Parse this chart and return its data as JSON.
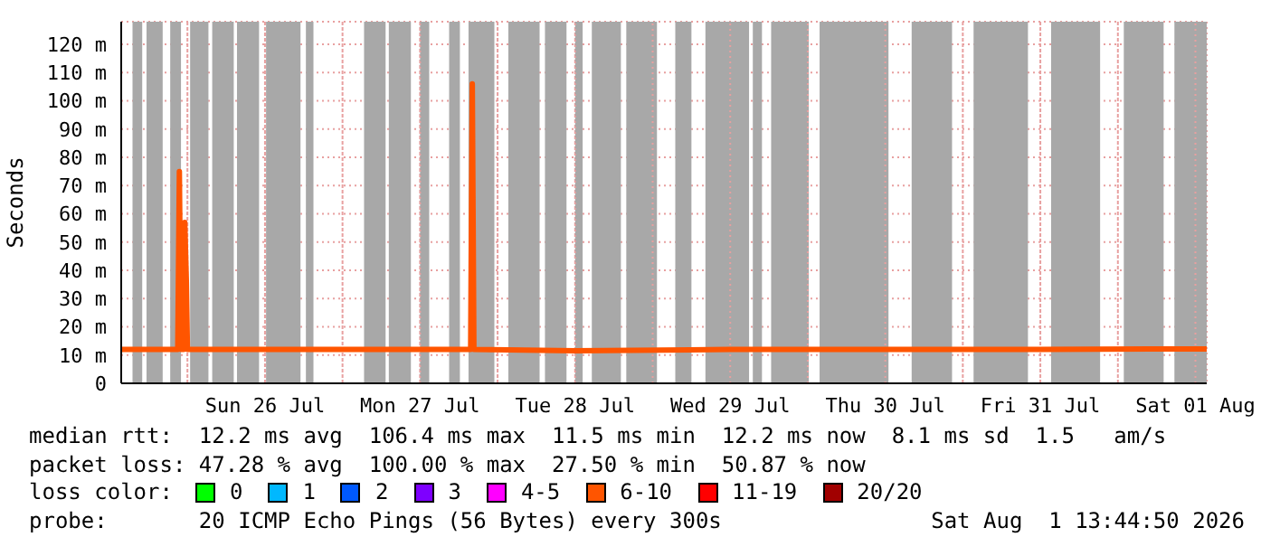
{
  "chart_data": {
    "type": "line",
    "ylabel": "Seconds",
    "legend_title": "loss color:",
    "legend": "bottom",
    "grid": true,
    "marker": "none",
    "line_style": "solid",
    "xlim": [
      "2026-07-25T13:45",
      "2026-08-01T13:45"
    ],
    "xticks": [
      {
        "value": "2026-07-26T00:00",
        "label": null
      },
      {
        "value": "2026-07-26T12:00",
        "label": "Sun 26 Jul"
      },
      {
        "value": "2026-07-27T00:00",
        "label": null
      },
      {
        "value": "2026-07-27T12:00",
        "label": "Mon 27 Jul"
      },
      {
        "value": "2026-07-28T00:00",
        "label": null
      },
      {
        "value": "2026-07-28T12:00",
        "label": "Tue 28 Jul"
      },
      {
        "value": "2026-07-29T00:00",
        "label": null
      },
      {
        "value": "2026-07-29T12:00",
        "label": "Wed 29 Jul"
      },
      {
        "value": "2026-07-30T00:00",
        "label": null
      },
      {
        "value": "2026-07-30T12:00",
        "label": "Thu 30 Jul"
      },
      {
        "value": "2026-07-31T00:00",
        "label": null
      },
      {
        "value": "2026-07-31T12:00",
        "label": "Fri 31 Jul"
      },
      {
        "value": "2026-08-01T00:00",
        "label": null
      },
      {
        "value": "2026-08-01T12:00",
        "label": "Sat 01 Aug"
      }
    ],
    "ylim": [
      0,
      128
    ],
    "yticks": [
      0,
      {
        "value": 10,
        "label": "10 m"
      },
      {
        "value": 20,
        "label": "20 m"
      },
      {
        "value": 30,
        "label": "30 m"
      },
      {
        "value": 40,
        "label": "40 m"
      },
      {
        "value": 50,
        "label": "50 m"
      },
      {
        "value": 60,
        "label": "60 m"
      },
      {
        "value": 70,
        "label": "70 m"
      },
      {
        "value": 80,
        "label": "80 m"
      },
      {
        "value": 90,
        "label": "90 m"
      },
      {
        "value": 100,
        "label": "100 m"
      },
      {
        "value": 110,
        "label": "110 m"
      },
      {
        "value": 120,
        "label": "120 m"
      }
    ],
    "x": [
      "2026-07-25T13:45",
      "2026-07-25T22:30",
      "2026-07-25T22:45",
      "2026-07-25T23:00",
      "2026-07-25T23:25",
      "2026-07-25T23:35",
      "2026-07-25T23:50",
      "2026-07-26T00:00",
      "2026-07-27T19:50",
      "2026-07-27T20:05",
      "2026-07-27T20:20",
      "2026-07-28T12:00",
      "2026-07-29T12:00",
      "2026-07-30T12:00",
      "2026-07-31T12:00",
      "2026-08-01T13:45"
    ],
    "series": [
      {
        "name": "0",
        "color": "#00ff00",
        "values": [
          null,
          null,
          null,
          null,
          null,
          null,
          null,
          null,
          null,
          null,
          null,
          null,
          null,
          null,
          null,
          null
        ]
      },
      {
        "name": "1",
        "color": "#00b8ff",
        "values": [
          null,
          null,
          null,
          null,
          null,
          null,
          null,
          null,
          null,
          null,
          null,
          null,
          null,
          null,
          null,
          null
        ]
      },
      {
        "name": "2",
        "color": "#0059ff",
        "values": [
          null,
          null,
          null,
          null,
          null,
          null,
          null,
          null,
          null,
          null,
          null,
          null,
          null,
          null,
          null,
          null
        ]
      },
      {
        "name": "3",
        "color": "#7e00ff",
        "values": [
          null,
          null,
          null,
          null,
          null,
          null,
          null,
          null,
          null,
          null,
          null,
          null,
          null,
          null,
          null,
          null
        ]
      },
      {
        "name": "4-5",
        "color": "#ff00ff",
        "values": [
          null,
          null,
          null,
          null,
          null,
          null,
          null,
          null,
          null,
          null,
          null,
          null,
          null,
          null,
          null,
          null
        ]
      },
      {
        "name": "6-10",
        "color": "#ff5500",
        "values": [
          12,
          12,
          75,
          12,
          12,
          57,
          36,
          12,
          12,
          106,
          12,
          11.5,
          12,
          12,
          12,
          12.2
        ]
      },
      {
        "name": "11-19",
        "color": "#ff0000",
        "values": [
          null,
          null,
          null,
          null,
          null,
          null,
          null,
          null,
          null,
          null,
          null,
          null,
          null,
          null,
          null,
          null
        ]
      },
      {
        "name": "20/20",
        "color": "#a10000",
        "values": [
          null,
          null,
          null,
          null,
          null,
          null,
          null,
          null,
          null,
          null,
          null,
          null,
          null,
          null,
          null,
          null
        ]
      }
    ],
    "bands": [
      {
        "axis": "x",
        "from": "2026-07-25T15:30",
        "to": "2026-07-25T17:00",
        "color": "#a8a8a8"
      },
      {
        "axis": "x",
        "from": "2026-07-25T17:40",
        "to": "2026-07-25T20:10",
        "color": "#a8a8a8"
      },
      {
        "axis": "x",
        "from": "2026-07-25T21:20",
        "to": "2026-07-25T23:00",
        "color": "#a8a8a8"
      },
      {
        "axis": "x",
        "from": "2026-07-26T00:25",
        "to": "2026-07-26T03:15",
        "color": "#a8a8a8"
      },
      {
        "axis": "x",
        "from": "2026-07-26T03:50",
        "to": "2026-07-26T07:10",
        "color": "#a8a8a8"
      },
      {
        "axis": "x",
        "from": "2026-07-26T07:40",
        "to": "2026-07-26T11:05",
        "color": "#a8a8a8"
      },
      {
        "axis": "x",
        "from": "2026-07-26T12:10",
        "to": "2026-07-26T17:30",
        "color": "#a8a8a8"
      },
      {
        "axis": "x",
        "from": "2026-07-26T18:20",
        "to": "2026-07-26T19:30",
        "color": "#a8a8a8"
      },
      {
        "axis": "x",
        "from": "2026-07-27T03:20",
        "to": "2026-07-27T06:40",
        "color": "#a8a8a8"
      },
      {
        "axis": "x",
        "from": "2026-07-27T07:10",
        "to": "2026-07-27T10:35",
        "color": "#a8a8a8"
      },
      {
        "axis": "x",
        "from": "2026-07-27T12:00",
        "to": "2026-07-27T13:25",
        "color": "#a8a8a8"
      },
      {
        "axis": "x",
        "from": "2026-07-27T16:30",
        "to": "2026-07-27T18:10",
        "color": "#a8a8a8"
      },
      {
        "axis": "x",
        "from": "2026-07-27T19:30",
        "to": "2026-07-27T23:30",
        "color": "#a8a8a8"
      },
      {
        "axis": "x",
        "from": "2026-07-28T01:40",
        "to": "2026-07-28T06:30",
        "color": "#a8a8a8"
      },
      {
        "axis": "x",
        "from": "2026-07-28T07:20",
        "to": "2026-07-28T10:40",
        "color": "#a8a8a8"
      },
      {
        "axis": "x",
        "from": "2026-07-28T12:00",
        "to": "2026-07-28T13:10",
        "color": "#a8a8a8"
      },
      {
        "axis": "x",
        "from": "2026-07-28T14:35",
        "to": "2026-07-28T19:05",
        "color": "#a8a8a8"
      },
      {
        "axis": "x",
        "from": "2026-07-28T19:55",
        "to": "2026-07-29T00:40",
        "color": "#a8a8a8"
      },
      {
        "axis": "x",
        "from": "2026-07-29T03:30",
        "to": "2026-07-29T06:00",
        "color": "#a8a8a8"
      },
      {
        "axis": "x",
        "from": "2026-07-29T08:10",
        "to": "2026-07-29T14:55",
        "color": "#a8a8a8"
      },
      {
        "axis": "x",
        "from": "2026-07-29T15:30",
        "to": "2026-07-29T16:55",
        "color": "#a8a8a8"
      },
      {
        "axis": "x",
        "from": "2026-07-29T18:20",
        "to": "2026-07-30T00:10",
        "color": "#a8a8a8"
      },
      {
        "axis": "x",
        "from": "2026-07-30T01:50",
        "to": "2026-07-30T12:30",
        "color": "#a8a8a8"
      },
      {
        "axis": "x",
        "from": "2026-07-30T16:05",
        "to": "2026-07-30T22:20",
        "color": "#a8a8a8"
      },
      {
        "axis": "x",
        "from": "2026-07-31T01:40",
        "to": "2026-07-31T10:05",
        "color": "#a8a8a8"
      },
      {
        "axis": "x",
        "from": "2026-07-31T13:40",
        "to": "2026-07-31T21:15",
        "color": "#a8a8a8"
      },
      {
        "axis": "x",
        "from": "2026-08-01T00:55",
        "to": "2026-08-01T07:05",
        "color": "#a8a8a8"
      },
      {
        "axis": "x",
        "from": "2026-08-01T08:45",
        "to": "2026-08-01T13:45",
        "color": "#a8a8a8"
      }
    ],
    "annotations": [
      "median rtt:  12.2 ms avg  106.4 ms max  11.5 ms min  12.2 ms now  8.1 ms sd  1.5   am/s",
      "packet loss: 47.28 % avg  100.00 % max  27.50 % min  50.87 % now",
      "probe:       20 ICMP Echo Pings (56 Bytes) every 300s",
      "Sat Aug  1 13:44:50 2026"
    ]
  }
}
